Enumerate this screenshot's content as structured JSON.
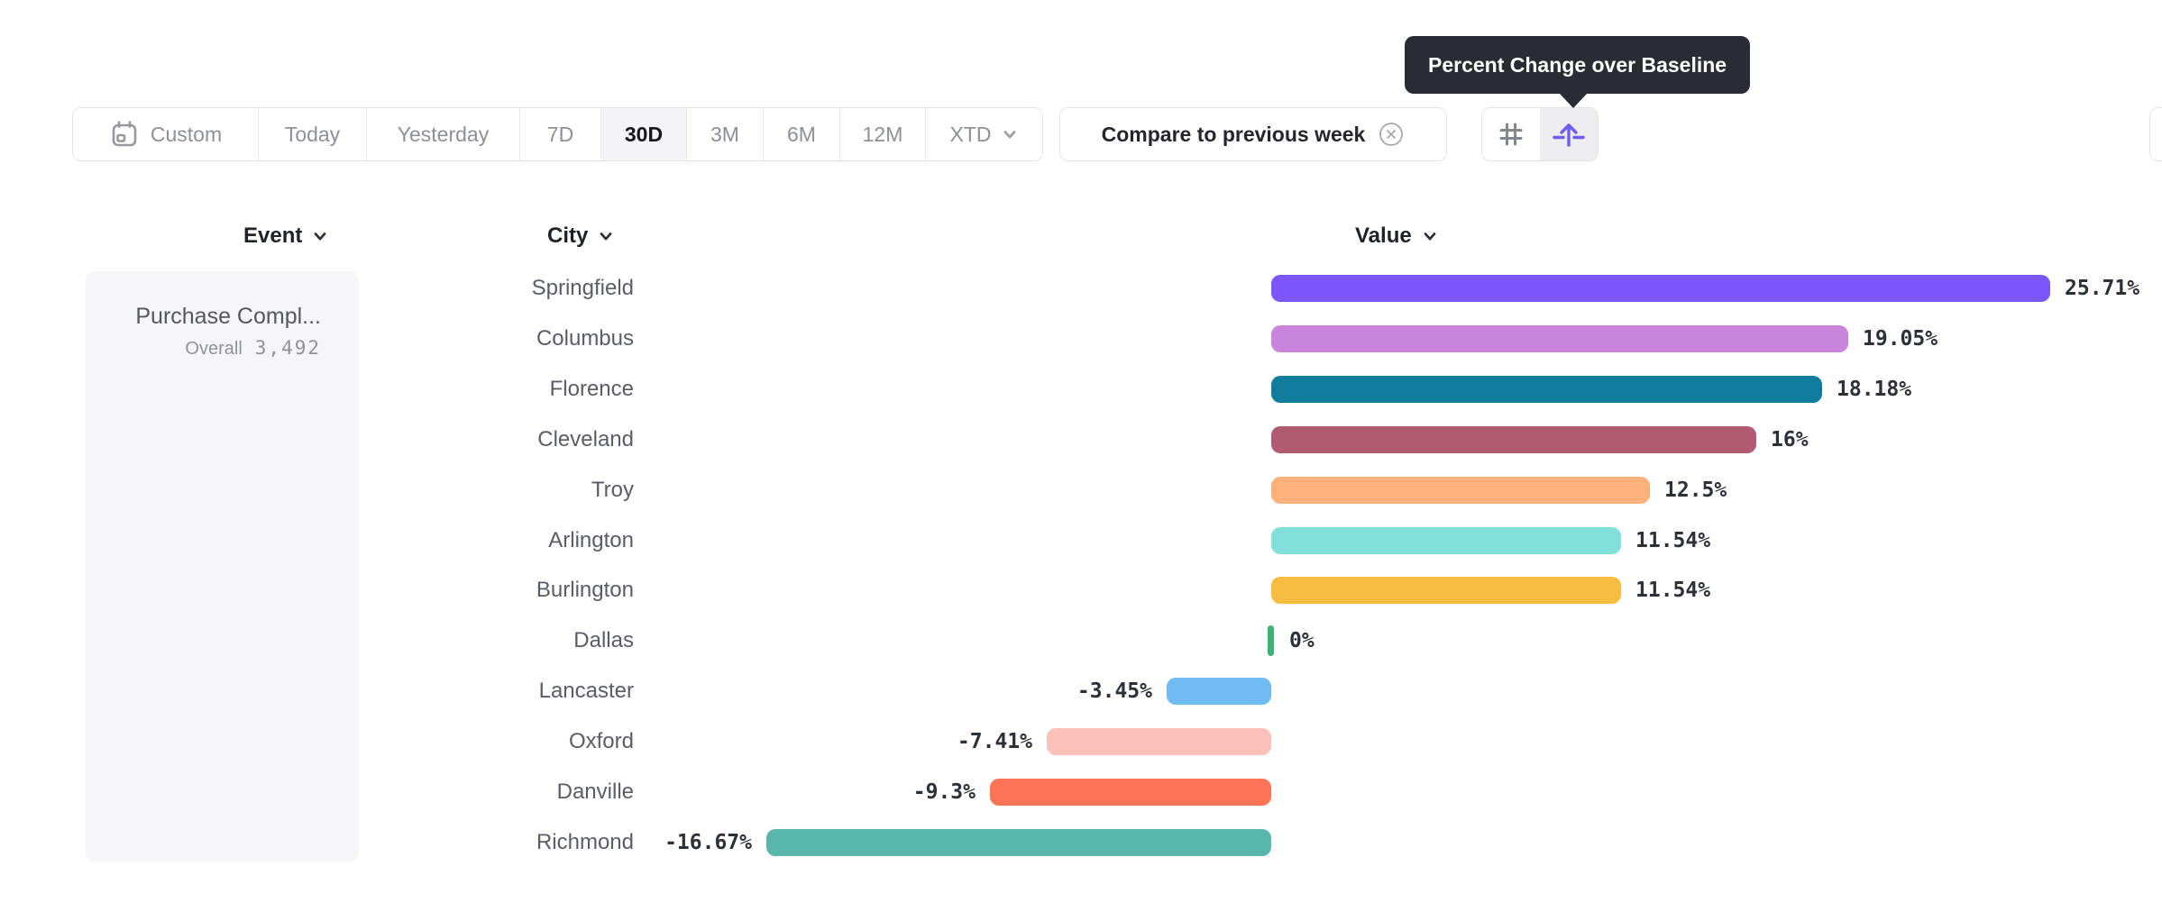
{
  "toolbar": {
    "date_ranges": [
      {
        "label": "Custom",
        "icon": "calendar-icon",
        "selected": false
      },
      {
        "label": "Today",
        "selected": false
      },
      {
        "label": "Yesterday",
        "selected": false
      },
      {
        "label": "7D",
        "selected": false
      },
      {
        "label": "30D",
        "selected": true
      },
      {
        "label": "3M",
        "selected": false
      },
      {
        "label": "6M",
        "selected": false
      },
      {
        "label": "12M",
        "selected": false
      },
      {
        "label": "XTD",
        "icon": "chevron-down-icon",
        "selected": false
      }
    ],
    "compare": {
      "label": "Compare to previous week",
      "close_icon": "circle-x-icon"
    },
    "view_toggles": [
      {
        "icon": "grid-icon",
        "selected": false
      },
      {
        "icon": "percent-baseline-icon",
        "selected": true,
        "tooltip": "Percent Change over Baseline"
      }
    ]
  },
  "tooltip": {
    "text": "Percent Change over Baseline"
  },
  "columns": {
    "event": "Event",
    "city": "City",
    "value": "Value"
  },
  "event_panel": {
    "event_name": "Purchase Compl...",
    "overall_label": "Overall",
    "overall_value": "3,492"
  },
  "chart_data": {
    "type": "bar",
    "orientation": "horizontal",
    "unit": "percent",
    "title": "Percent Change over Baseline",
    "baseline": 0,
    "value_range_shown": [
      -16.67,
      25.71
    ],
    "categories": [
      "Springfield",
      "Columbus",
      "Florence",
      "Cleveland",
      "Troy",
      "Arlington",
      "Burlington",
      "Dallas",
      "Lancaster",
      "Oxford",
      "Danville",
      "Richmond"
    ],
    "values": [
      25.71,
      19.05,
      18.18,
      16,
      12.5,
      11.54,
      11.54,
      0,
      -3.45,
      -7.41,
      -9.3,
      -16.67
    ],
    "rows": [
      {
        "city": "Springfield",
        "value": 25.71,
        "label": "25.71%",
        "color": "#7a56fb"
      },
      {
        "city": "Columbus",
        "value": 19.05,
        "label": "19.05%",
        "color": "#c985dc"
      },
      {
        "city": "Florence",
        "value": 18.18,
        "label": "18.18%",
        "color": "#117d9e"
      },
      {
        "city": "Cleveland",
        "value": 16,
        "label": "16%",
        "color": "#b25a72"
      },
      {
        "city": "Troy",
        "value": 12.5,
        "label": "12.5%",
        "color": "#ffb17b"
      },
      {
        "city": "Arlington",
        "value": 11.54,
        "label": "11.54%",
        "color": "#82dfda"
      },
      {
        "city": "Burlington",
        "value": 11.54,
        "label": "11.54%",
        "color": "#f6bd40"
      },
      {
        "city": "Dallas",
        "value": 0,
        "label": "0%",
        "color": "#3cb276"
      },
      {
        "city": "Lancaster",
        "value": -3.45,
        "label": "-3.45%",
        "color": "#6fbbf2"
      },
      {
        "city": "Oxford",
        "value": -7.41,
        "label": "-7.41%",
        "color": "#fcc1bb"
      },
      {
        "city": "Danville",
        "value": -9.3,
        "label": "-9.3%",
        "color": "#fd7355"
      },
      {
        "city": "Richmond",
        "value": -16.67,
        "label": "-16.67%",
        "color": "#58b7aa"
      }
    ]
  },
  "colors": {
    "accent_purple": "#6f5cf1",
    "tooltip_bg": "#2a2c33",
    "selected_segment_bg": "#f4f4f6",
    "panel_bg": "#f6f6f8",
    "border": "#e3e4e7",
    "zero_tick_green": "#3cb276"
  }
}
